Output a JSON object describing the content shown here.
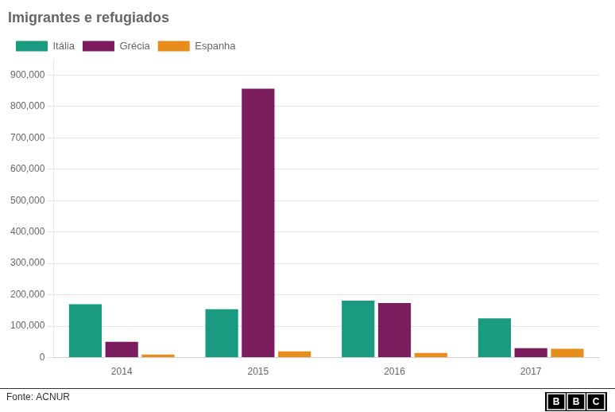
{
  "chart_data": {
    "type": "bar",
    "title": "Imigrantes e refugiados",
    "categories": [
      "2014",
      "2015",
      "2016",
      "2017"
    ],
    "series": [
      {
        "name": "Itália",
        "color": "#1a9a80",
        "values": [
          170100,
          153842,
          181436,
          125000
        ]
      },
      {
        "name": "Grécia",
        "color": "#7b1c5e",
        "values": [
          50000,
          856723,
          174000,
          29875
        ]
      },
      {
        "name": "Espanha",
        "color": "#e88c1a",
        "values": [
          10000,
          19864,
          14704,
          28419
        ]
      }
    ],
    "ylim": [
      0,
      950000
    ],
    "yticks": [
      0,
      {
        "value": 100000,
        "label": "100,000"
      },
      {
        "value": 200000,
        "label": "200,000"
      },
      {
        "value": 300000,
        "label": "300,000"
      },
      {
        "value": 400000,
        "label": "400,000"
      },
      {
        "value": 500000,
        "label": "500,000"
      },
      {
        "value": 600000,
        "label": "600,000"
      },
      {
        "value": 700000,
        "label": "700,000"
      },
      {
        "value": 800000,
        "label": "800,000"
      },
      {
        "value": 900000,
        "label": "900,000"
      }
    ],
    "grid": true,
    "legend": "top-left",
    "source": "Fonte: ACNUR",
    "logo": "BBC"
  }
}
